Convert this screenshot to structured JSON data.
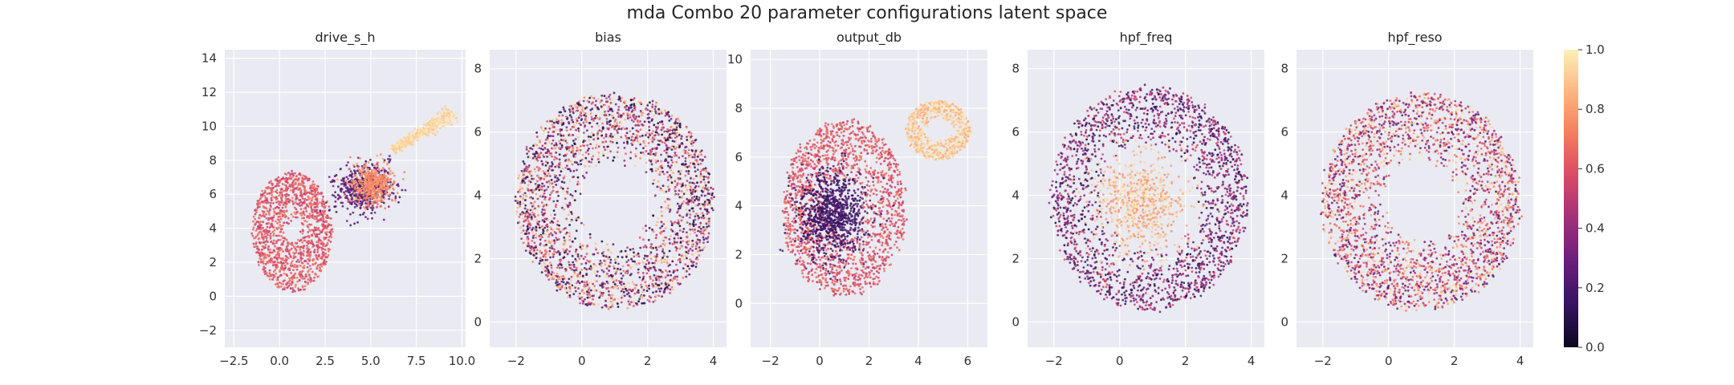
{
  "figure": {
    "title": "mda Combo 20 parameter configurations latent space"
  },
  "chart_data": [
    {
      "type": "scatter",
      "title": "drive_s_h",
      "xlim": [
        -3.0,
        10.2
      ],
      "ylim": [
        -3.0,
        14.5
      ],
      "xticks": [
        -2.5,
        0.0,
        2.5,
        5.0,
        7.5,
        10.0
      ],
      "xtick_labels": [
        "−2.5",
        "0.0",
        "2.5",
        "5.0",
        "7.5",
        "10.0"
      ],
      "yticks": [
        -2,
        0,
        2,
        4,
        6,
        8,
        10,
        12,
        14
      ],
      "ytick_labels": [
        "−2",
        "0",
        "2",
        "4",
        "6",
        "8",
        "10",
        "12",
        "14"
      ],
      "clusters": [
        {
          "shape": "ring",
          "cx": 0.7,
          "cy": 3.8,
          "r": 2.2,
          "ry": 3.5,
          "hole": 0.15,
          "n": 1300,
          "vmin": 0.5,
          "vmax": 0.72
        },
        {
          "shape": "blob",
          "cx": 4.6,
          "cy": 6.3,
          "rx": 1.6,
          "ry": 1.4,
          "n": 500,
          "vmin": 0.15,
          "vmax": 0.35
        },
        {
          "shape": "blob",
          "cx": 5.1,
          "cy": 6.6,
          "rx": 1.2,
          "ry": 1.1,
          "n": 450,
          "vmin": 0.7,
          "vmax": 0.82
        },
        {
          "shape": "band",
          "x0": 6.2,
          "y0": 8.6,
          "x1": 9.5,
          "y1": 10.8,
          "w": 0.6,
          "n": 450,
          "vmin": 0.88,
          "vmax": 1.0
        }
      ]
    },
    {
      "type": "scatter",
      "title": "bias",
      "xlim": [
        -2.8,
        4.4
      ],
      "ylim": [
        -0.8,
        8.6
      ],
      "xticks": [
        -2,
        0,
        2,
        4
      ],
      "xtick_labels": [
        "−2",
        "0",
        "2",
        "4"
      ],
      "yticks": [
        0,
        2,
        4,
        6,
        8
      ],
      "ytick_labels": [
        "0",
        "2",
        "4",
        "6",
        "8"
      ],
      "clusters": [
        {
          "shape": "ring",
          "cx": 1.0,
          "cy": 3.8,
          "r": 3.0,
          "ry": 3.4,
          "hole": 0.35,
          "n": 2600,
          "vmin": 0.0,
          "vmax": 1.0
        }
      ]
    },
    {
      "type": "scatter",
      "title": "output_db",
      "xlim": [
        -2.8,
        6.8
      ],
      "ylim": [
        -1.8,
        10.4
      ],
      "xticks": [
        -2,
        0,
        2,
        4,
        6
      ],
      "xtick_labels": [
        "−2",
        "0",
        "2",
        "4",
        "6"
      ],
      "yticks": [
        0,
        2,
        4,
        6,
        8,
        10
      ],
      "ytick_labels": [
        "0",
        "2",
        "4",
        "6",
        "8",
        "10"
      ],
      "clusters": [
        {
          "shape": "ring",
          "cx": 1.0,
          "cy": 3.9,
          "r": 2.5,
          "ry": 3.6,
          "hole": 0.25,
          "n": 1600,
          "vmin": 0.5,
          "vmax": 0.72
        },
        {
          "shape": "blob",
          "cx": 0.5,
          "cy": 3.6,
          "rx": 1.3,
          "ry": 1.8,
          "n": 900,
          "vmin": 0.1,
          "vmax": 0.25
        },
        {
          "shape": "ring",
          "cx": 4.8,
          "cy": 7.1,
          "r": 1.3,
          "ry": 1.2,
          "hole": 0.35,
          "n": 700,
          "vmin": 0.82,
          "vmax": 1.0
        }
      ]
    },
    {
      "type": "scatter",
      "title": "hpf_freq",
      "xlim": [
        -2.8,
        4.4
      ],
      "ylim": [
        -0.8,
        8.6
      ],
      "xticks": [
        -2,
        0,
        2,
        4
      ],
      "xtick_labels": [
        "−2",
        "0",
        "2",
        "4"
      ],
      "yticks": [
        0,
        2,
        4,
        6,
        8
      ],
      "ytick_labels": [
        "0",
        "2",
        "4",
        "6",
        "8"
      ],
      "clusters": [
        {
          "shape": "ring",
          "cx": 0.9,
          "cy": 3.9,
          "r": 3.0,
          "ry": 3.5,
          "hole": 0.45,
          "n": 1900,
          "vmin": 0.05,
          "vmax": 0.6
        },
        {
          "shape": "blob",
          "cx": 0.6,
          "cy": 3.8,
          "rx": 1.4,
          "ry": 1.6,
          "n": 700,
          "vmin": 0.75,
          "vmax": 0.98
        }
      ]
    },
    {
      "type": "scatter",
      "title": "hpf_reso",
      "xlim": [
        -2.8,
        4.4
      ],
      "ylim": [
        -0.8,
        8.6
      ],
      "xticks": [
        -2,
        0,
        2,
        4
      ],
      "xtick_labels": [
        "−2",
        "0",
        "2",
        "4"
      ],
      "yticks": [
        0,
        2,
        4,
        6,
        8
      ],
      "ytick_labels": [
        "0",
        "2",
        "4",
        "6",
        "8"
      ],
      "clusters": [
        {
          "shape": "ring",
          "cx": 1.0,
          "cy": 3.8,
          "r": 3.0,
          "ry": 3.4,
          "hole": 0.35,
          "n": 2600,
          "vmin": 0.2,
          "vmax": 1.0
        }
      ]
    }
  ],
  "colorbar": {
    "range": [
      0.0,
      1.0
    ],
    "ticks": [
      0.0,
      0.2,
      0.4,
      0.6,
      0.8,
      1.0
    ],
    "tick_labels": [
      "0.0",
      "0.2",
      "0.4",
      "0.6",
      "0.8",
      "1.0"
    ],
    "colormap": "magma"
  },
  "style": {
    "axes_bg": "#eaeaf2",
    "grid_color": "#ffffff"
  }
}
